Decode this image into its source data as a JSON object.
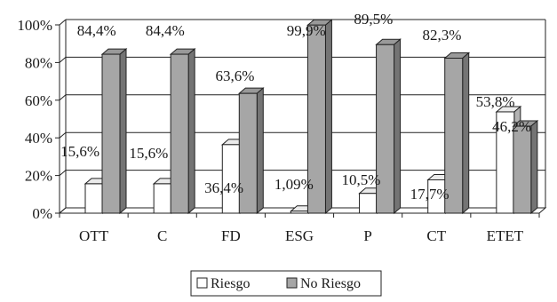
{
  "chart_data": {
    "type": "bar",
    "style": "3d-clustered-column",
    "categories": [
      "OTT",
      "C",
      "FD",
      "ESG",
      "P",
      "CT",
      "ETET"
    ],
    "series": [
      {
        "name": "Riesgo",
        "values": [
          15.6,
          15.6,
          36.4,
          1.09,
          10.5,
          17.7,
          53.8
        ],
        "labels": [
          "15,6%",
          "15,6%",
          "36,4%",
          "1,09%",
          "10,5%",
          "17,7%",
          "53,8%"
        ],
        "color": "#ffffff"
      },
      {
        "name": "No Riesgo",
        "values": [
          84.4,
          84.4,
          63.6,
          99.9,
          89.5,
          82.3,
          46.2
        ],
        "labels": [
          "84,4%",
          "84,4%",
          "63,6%",
          "99,9%",
          "89,5%",
          "82,3%",
          "46,2%"
        ],
        "color": "#a6a6a6"
      }
    ],
    "ylim": [
      0,
      100
    ],
    "yticks": [
      "0%",
      "20%",
      "40%",
      "60%",
      "80%",
      "100%"
    ],
    "grid": true,
    "legend": "bottom"
  }
}
